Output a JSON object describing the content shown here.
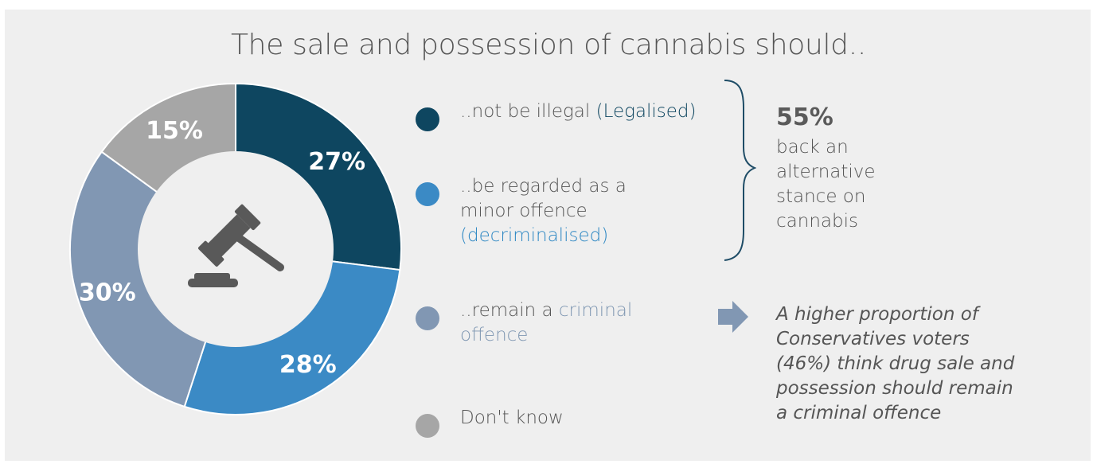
{
  "chart_data": {
    "type": "pie",
    "title": "The sale and possession of cannabis should..",
    "series": [
      {
        "name": "..not be illegal (Legalised)",
        "value": 27,
        "label": "27%",
        "color": "#0e4660"
      },
      {
        "name": "..be regarded as a minor offence (decriminalised)",
        "value": 28,
        "label": "28%",
        "color": "#3b8ac5"
      },
      {
        "name": "..remain a criminal offence",
        "value": 30,
        "label": "30%",
        "color": "#8197b3"
      },
      {
        "name": "Don't know",
        "value": 15,
        "label": "15%",
        "color": "#a6a6a6"
      }
    ],
    "center_icon": "gavel-icon"
  },
  "legend": {
    "item1": {
      "prefix": "..not be illegal ",
      "highlight": "(Legalised)"
    },
    "item2": {
      "line1": "..be regarded as a",
      "line2": "minor offence",
      "highlight": "(decriminalised)"
    },
    "item3": {
      "prefix": "..remain a ",
      "highlight1": "criminal",
      "highlight2": "offence"
    },
    "item4": {
      "text": "Don't know"
    }
  },
  "summary": {
    "percent": "55%",
    "line1": "back an",
    "line2": "alternative",
    "line3": "stance on",
    "line4": "cannabis"
  },
  "note": {
    "line1": "A higher proportion of",
    "line2": "Conservatives voters",
    "line3": "(46%) think drug sale and",
    "line4": "possession should remain",
    "line5": "a criminal offence"
  },
  "icons": {
    "arrow": "arrow-right-icon",
    "brace": "curly-brace-icon"
  }
}
